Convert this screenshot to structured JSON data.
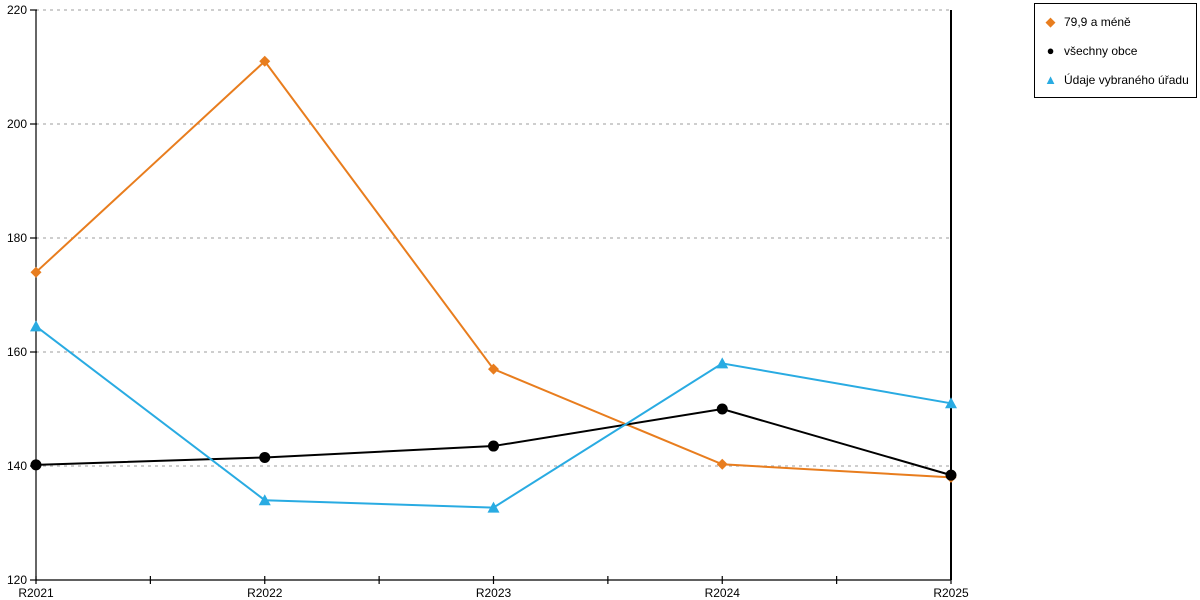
{
  "chart_data": {
    "type": "line",
    "title": "",
    "xlabel": "",
    "ylabel": "",
    "categories": [
      "R2021",
      "R2022",
      "R2023",
      "R2024",
      "R2025"
    ],
    "series": [
      {
        "name": "79,9 a méně",
        "marker": "diamond",
        "color": "#e87d1e",
        "values": [
          174,
          211,
          157,
          140.3,
          138
        ]
      },
      {
        "name": "všechny obce",
        "marker": "circle",
        "color": "#000000",
        "values": [
          140.2,
          141.5,
          143.5,
          150,
          138.4
        ]
      },
      {
        "name": "Údaje vybraného úřadu",
        "marker": "triangle",
        "color": "#29abe2",
        "values": [
          164.5,
          134,
          132.7,
          158,
          151
        ]
      }
    ],
    "ylim": [
      120,
      220
    ],
    "ytick_step": 20,
    "yticks": [
      120,
      140,
      160,
      180,
      200,
      220
    ],
    "grid": "horizontal dashed lines every 20 units",
    "grid_color": "#b0b0b0",
    "axis_color": "#000000",
    "background": "#ffffff",
    "legend_position": "outside top-right, bordered box",
    "x_minor_ticks": "unlabeled ticks at midpoints between year labels"
  }
}
